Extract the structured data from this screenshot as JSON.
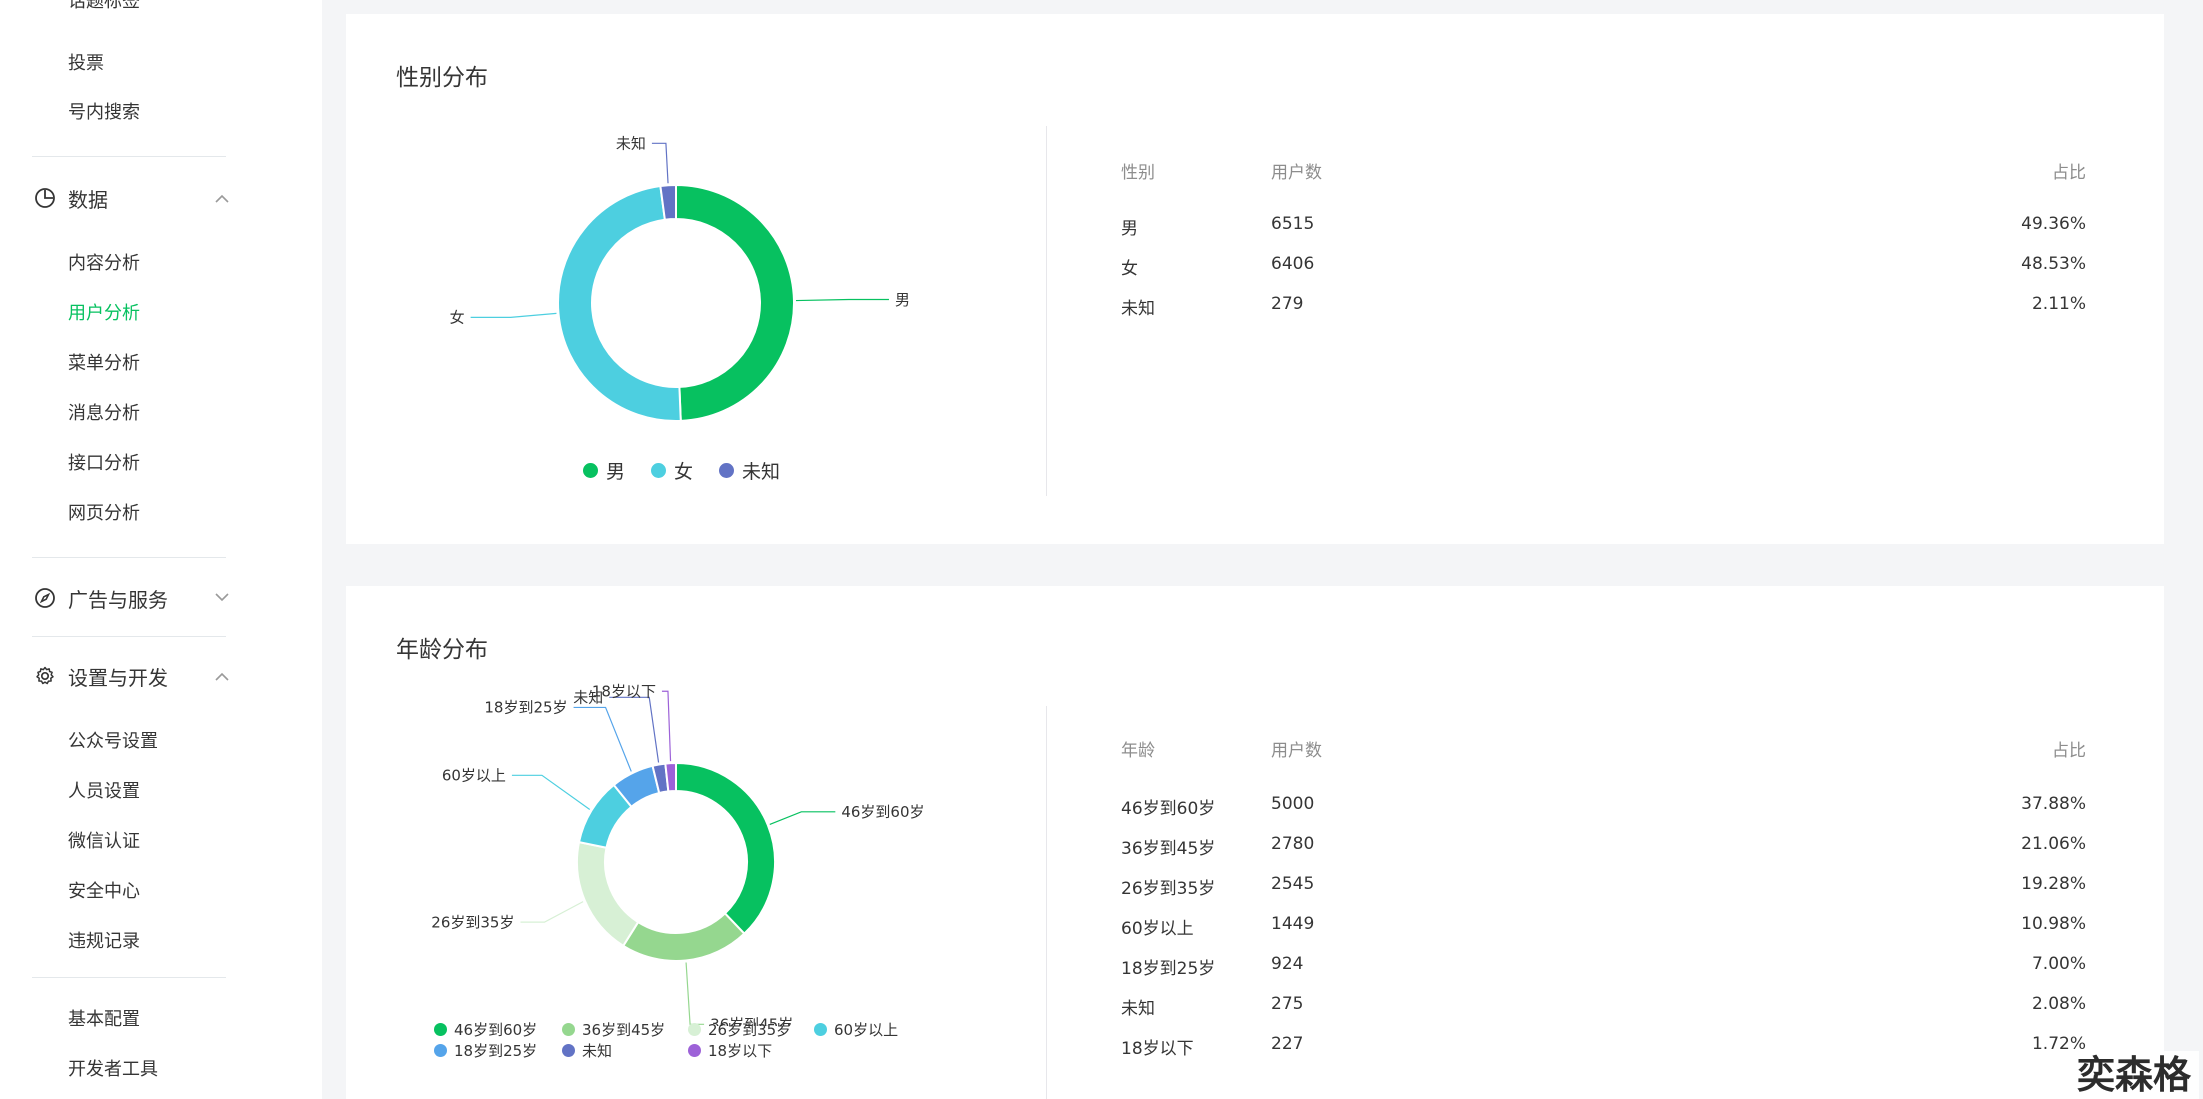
{
  "sidebar": {
    "cutoff_item": "话题标签",
    "top_items": [
      "投票",
      "号内搜索"
    ],
    "groups": [
      {
        "label": "数据",
        "expanded": true,
        "items": [
          "内容分析",
          "用户分析",
          "菜单分析",
          "消息分析",
          "接口分析",
          "网页分析"
        ],
        "active_item": "用户分析"
      },
      {
        "label": "广告与服务",
        "expanded": false,
        "items": []
      },
      {
        "label": "设置与开发",
        "expanded": true,
        "items": [
          "公众号设置",
          "人员设置",
          "微信认证",
          "安全中心",
          "违规记录"
        ]
      }
    ],
    "bottom_items": [
      "基本配置",
      "开发者工具"
    ]
  },
  "gender": {
    "title": "性别分布",
    "headers": {
      "category": "性别",
      "users": "用户数",
      "ratio": "占比"
    },
    "rows": [
      {
        "category": "男",
        "users": "6515",
        "ratio": "49.36%"
      },
      {
        "category": "女",
        "users": "6406",
        "ratio": "48.53%"
      },
      {
        "category": "未知",
        "users": "279",
        "ratio": "2.11%"
      }
    ],
    "legend": [
      "男",
      "女",
      "未知"
    ]
  },
  "age": {
    "title": "年龄分布",
    "headers": {
      "category": "年龄",
      "users": "用户数",
      "ratio": "占比"
    },
    "rows": [
      {
        "category": "46岁到60岁",
        "users": "5000",
        "ratio": "37.88%"
      },
      {
        "category": "36岁到45岁",
        "users": "2780",
        "ratio": "21.06%"
      },
      {
        "category": "26岁到35岁",
        "users": "2545",
        "ratio": "19.28%"
      },
      {
        "category": "60岁以上",
        "users": "1449",
        "ratio": "10.98%"
      },
      {
        "category": "18岁到25岁",
        "users": "924",
        "ratio": "7.00%"
      },
      {
        "category": "未知",
        "users": "275",
        "ratio": "2.08%"
      },
      {
        "category": "18岁以下",
        "users": "227",
        "ratio": "1.72%"
      }
    ],
    "legend": [
      "46岁到60岁",
      "36岁到45岁",
      "26岁到35岁",
      "60岁以上",
      "18岁到25岁",
      "未知",
      "18岁以下"
    ]
  },
  "chart_data": [
    {
      "type": "pie",
      "title": "性别分布",
      "categories": [
        "男",
        "女",
        "未知"
      ],
      "values": [
        6515,
        6406,
        279
      ],
      "colors": [
        "#07c160",
        "#4dcfe0",
        "#6273c5"
      ],
      "legend": "bottom"
    },
    {
      "type": "pie",
      "title": "年龄分布",
      "categories": [
        "46岁到60岁",
        "36岁到45岁",
        "26岁到35岁",
        "60岁以上",
        "18岁到25岁",
        "未知",
        "18岁以下"
      ],
      "values": [
        5000,
        2780,
        2545,
        1449,
        924,
        275,
        227
      ],
      "colors": [
        "#07c160",
        "#95d78f",
        "#d7f0d5",
        "#4dcfe0",
        "#55a4ea",
        "#6273c5",
        "#9d62d8"
      ],
      "legend": "bottom"
    }
  ],
  "watermark": "奕森格"
}
